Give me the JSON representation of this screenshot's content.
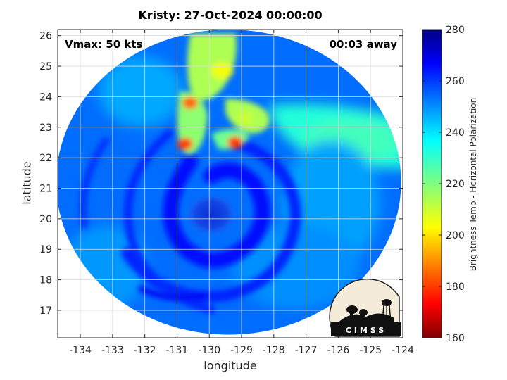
{
  "title": "Kristy: 27-Oct-2024 00:00:00",
  "xlabel": "longitude",
  "ylabel": "latitude",
  "annotations": {
    "vmax": "Vmax: 50 kts",
    "time_offset": "00:03 away"
  },
  "logo_text": "CIMSS",
  "colorbar": {
    "label": "Brightness Temp - Horizontal Polarization",
    "range": [
      160,
      280
    ],
    "ticks": [
      "160",
      "180",
      "200",
      "220",
      "240",
      "260",
      "280"
    ],
    "colormap": "jet (reversed: 160 dark red, 280 dark blue)"
  },
  "chart_data": {
    "type": "heatmap",
    "title": "Kristy: 27-Oct-2024 00:00:00",
    "xlabel": "longitude",
    "ylabel": "latitude",
    "xlim": [
      -134.7,
      -124
    ],
    "ylim": [
      16.1,
      26.2
    ],
    "xticks": [
      -134,
      -133,
      -132,
      -131,
      -130,
      -129,
      -128,
      -127,
      -126,
      -125,
      -124
    ],
    "yticks": [
      17,
      18,
      19,
      20,
      21,
      22,
      23,
      24,
      25,
      26
    ],
    "xtick_labels": [
      "-134",
      "-133",
      "-132",
      "-131",
      "-130",
      "-129",
      "-128",
      "-127",
      "-126",
      "-125",
      "-124"
    ],
    "ytick_labels": [
      "17",
      "18",
      "19",
      "20",
      "21",
      "22",
      "23",
      "24",
      "25",
      "26"
    ],
    "grid": true,
    "swath": {
      "center": [
        -129.4,
        21.2
      ],
      "radius_deg_lon": 5.35,
      "radius_deg_lat": 5.0
    },
    "warm_features": [
      {
        "lon": -129.2,
        "lat": 22.5,
        "tb": 180
      },
      {
        "lon": -130.6,
        "lat": 23.8,
        "tb": 185
      },
      {
        "lon": -130.75,
        "lat": 22.45,
        "tb": 180
      },
      {
        "lon": -129.6,
        "lat": 24.85,
        "tb": 205
      },
      {
        "lon": -128.9,
        "lat": 23.3,
        "tb": 210
      }
    ]
  }
}
